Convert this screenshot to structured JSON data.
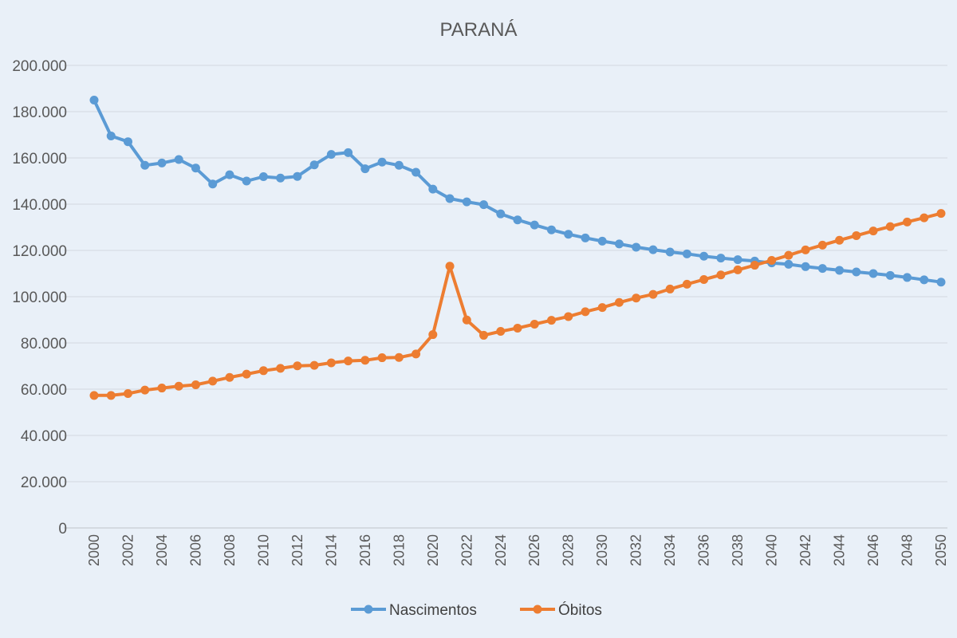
{
  "chart_data": {
    "type": "line",
    "title": "PARANÁ",
    "xlabel": "",
    "ylabel": "",
    "ylim": [
      0,
      200000
    ],
    "yticks": [
      0,
      20000,
      40000,
      60000,
      80000,
      100000,
      120000,
      140000,
      160000,
      180000,
      200000
    ],
    "ytick_labels": [
      "0",
      "20.000",
      "40.000",
      "60.000",
      "80.000",
      "100.000",
      "120.000",
      "140.000",
      "160.000",
      "180.000",
      "200.000"
    ],
    "x": [
      2000,
      2001,
      2002,
      2003,
      2004,
      2005,
      2006,
      2007,
      2008,
      2009,
      2010,
      2011,
      2012,
      2013,
      2014,
      2015,
      2016,
      2017,
      2018,
      2019,
      2020,
      2021,
      2022,
      2023,
      2024,
      2025,
      2026,
      2027,
      2028,
      2029,
      2030,
      2031,
      2032,
      2033,
      2034,
      2035,
      2036,
      2037,
      2038,
      2039,
      2040,
      2041,
      2042,
      2043,
      2044,
      2045,
      2046,
      2047,
      2048,
      2049,
      2050
    ],
    "xticks": [
      2000,
      2002,
      2004,
      2006,
      2008,
      2010,
      2012,
      2014,
      2016,
      2018,
      2020,
      2022,
      2024,
      2026,
      2028,
      2030,
      2032,
      2034,
      2036,
      2038,
      2040,
      2042,
      2044,
      2046,
      2048,
      2050
    ],
    "grid": true,
    "legend_position": "bottom",
    "series": [
      {
        "name": "Nascimentos",
        "color": "#5b9bd5",
        "values": [
          185000,
          169500,
          167000,
          156800,
          157800,
          159300,
          155600,
          148700,
          152700,
          150000,
          151900,
          151300,
          152000,
          157000,
          161500,
          162300,
          155300,
          158200,
          156800,
          153800,
          146500,
          142400,
          141000,
          139800,
          135800,
          133200,
          131000,
          128900,
          127000,
          125400,
          124000,
          122800,
          121400,
          120300,
          119300,
          118500,
          117500,
          116700,
          116000,
          115400,
          114600,
          114000,
          113000,
          112200,
          111400,
          110700,
          110000,
          109200,
          108300,
          107300,
          106300
        ]
      },
      {
        "name": "Óbitos",
        "color": "#ed7d31",
        "values": [
          57300,
          57300,
          58100,
          59600,
          60500,
          61300,
          61900,
          63500,
          65100,
          66500,
          68000,
          69000,
          70100,
          70300,
          71400,
          72200,
          72500,
          73600,
          73700,
          75200,
          83600,
          113200,
          89900,
          83300,
          85000,
          86400,
          88100,
          89800,
          91400,
          93500,
          95300,
          97500,
          99400,
          101000,
          103300,
          105400,
          107400,
          109400,
          111600,
          113600,
          115700,
          117900,
          120200,
          122300,
          124400,
          126400,
          128400,
          130300,
          132300,
          134100,
          136000
        ]
      }
    ]
  }
}
